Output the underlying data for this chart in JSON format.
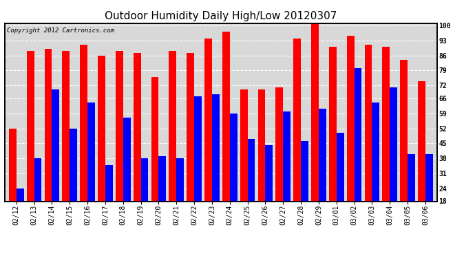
{
  "title": "Outdoor Humidity Daily High/Low 20120307",
  "copyright": "Copyright 2012 Cartronics.com",
  "categories": [
    "02/12",
    "02/13",
    "02/14",
    "02/15",
    "02/16",
    "02/17",
    "02/18",
    "02/19",
    "02/20",
    "02/21",
    "02/22",
    "02/23",
    "02/24",
    "02/25",
    "02/26",
    "02/27",
    "02/28",
    "02/29",
    "03/01",
    "03/02",
    "03/03",
    "03/04",
    "03/05",
    "03/06"
  ],
  "high_values": [
    52,
    88,
    89,
    88,
    91,
    86,
    88,
    87,
    76,
    88,
    87,
    94,
    97,
    70,
    70,
    71,
    94,
    101,
    90,
    95,
    91,
    90,
    84,
    74
  ],
  "low_values": [
    24,
    38,
    70,
    52,
    64,
    35,
    57,
    38,
    39,
    38,
    67,
    68,
    59,
    47,
    44,
    60,
    46,
    61,
    50,
    80,
    64,
    71,
    40,
    40
  ],
  "high_color": "#ff0000",
  "low_color": "#0000ff",
  "bg_color": "#ffffff",
  "plot_bg_color": "#d8d8d8",
  "ylim_min": 18,
  "ylim_max": 101,
  "yticks": [
    18,
    24,
    31,
    38,
    45,
    52,
    59,
    66,
    72,
    79,
    86,
    93,
    100
  ],
  "title_fontsize": 11,
  "copyright_fontsize": 6.5,
  "tick_fontsize": 7,
  "bar_width": 0.42,
  "figwidth": 6.9,
  "figheight": 3.75,
  "dpi": 100
}
